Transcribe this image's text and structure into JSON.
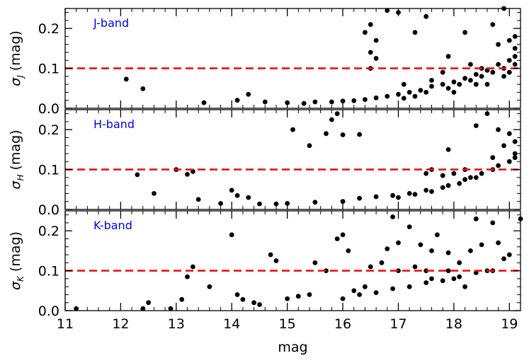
{
  "chart_data": {
    "type": "scatter",
    "xlabel": "mag",
    "xlim": [
      11.0,
      19.2
    ],
    "xticks": [
      "11",
      "12",
      "13",
      "14",
      "15",
      "16",
      "17",
      "18",
      "19"
    ],
    "ylim": [
      0.0,
      0.25
    ],
    "yticks": [
      "0.0",
      "0.1",
      "0.2"
    ],
    "threshold": 0.1,
    "threshold_color": "#ee1111",
    "label_color": "#0000ee",
    "point_color": "#000000",
    "panels": [
      {
        "band_label": "J-band",
        "ylabel_symbol": "σ",
        "ylabel_sub": "J",
        "ylabel_unit": "(mag)",
        "points": [
          [
            12.1,
            0.073
          ],
          [
            12.4,
            0.049
          ],
          [
            13.5,
            0.014
          ],
          [
            14.1,
            0.02
          ],
          [
            14.3,
            0.035
          ],
          [
            14.6,
            0.016
          ],
          [
            15.0,
            0.014
          ],
          [
            15.3,
            0.012
          ],
          [
            15.5,
            0.016
          ],
          [
            15.8,
            0.016
          ],
          [
            16.0,
            0.018
          ],
          [
            16.2,
            0.019
          ],
          [
            16.4,
            0.022
          ],
          [
            16.6,
            0.026
          ],
          [
            16.8,
            0.03
          ],
          [
            17.0,
            0.035
          ],
          [
            17.2,
            0.04
          ],
          [
            17.4,
            0.045
          ],
          [
            17.6,
            0.055
          ],
          [
            17.8,
            0.06
          ],
          [
            18.0,
            0.066
          ],
          [
            18.2,
            0.075
          ],
          [
            18.4,
            0.085
          ],
          [
            18.6,
            0.095
          ],
          [
            18.8,
            0.11
          ],
          [
            19.0,
            0.12
          ],
          [
            19.1,
            0.13
          ],
          [
            17.1,
            0.025
          ],
          [
            17.3,
            0.03
          ],
          [
            17.5,
            0.04
          ],
          [
            17.9,
            0.05
          ],
          [
            18.1,
            0.06
          ],
          [
            18.3,
            0.07
          ],
          [
            18.5,
            0.08
          ],
          [
            18.7,
            0.09
          ],
          [
            18.9,
            0.1
          ],
          [
            19.1,
            0.11
          ],
          [
            16.4,
            0.19
          ],
          [
            16.5,
            0.21
          ],
          [
            16.6,
            0.17
          ],
          [
            16.8,
            0.245
          ],
          [
            17.0,
            0.24
          ],
          [
            17.3,
            0.19
          ],
          [
            17.5,
            0.23
          ],
          [
            17.9,
            0.13
          ],
          [
            18.2,
            0.19
          ],
          [
            18.5,
            0.1
          ],
          [
            18.7,
            0.21
          ],
          [
            18.9,
            0.25
          ],
          [
            19.1,
            0.15
          ],
          [
            16.5,
            0.14
          ],
          [
            16.6,
            0.125
          ],
          [
            17.8,
            0.09
          ],
          [
            18.3,
            0.11
          ],
          [
            18.8,
            0.16
          ],
          [
            19.0,
            0.17
          ],
          [
            19.1,
            0.18
          ],
          [
            16.5,
            0.1
          ],
          [
            17.1,
            0.06
          ],
          [
            17.6,
            0.07
          ],
          [
            18.0,
            0.04
          ],
          [
            18.4,
            0.06
          ],
          [
            18.6,
            0.06
          ],
          [
            18.9,
            0.08
          ],
          [
            19.0,
            0.09
          ]
        ]
      },
      {
        "band_label": "H-band",
        "ylabel_symbol": "σ",
        "ylabel_sub": "H",
        "ylabel_unit": "(mag)",
        "points": [
          [
            12.3,
            0.087
          ],
          [
            12.6,
            0.04
          ],
          [
            13.0,
            0.1
          ],
          [
            13.2,
            0.088
          ],
          [
            13.3,
            0.095
          ],
          [
            13.4,
            0.025
          ],
          [
            13.8,
            0.015
          ],
          [
            14.0,
            0.048
          ],
          [
            14.1,
            0.035
          ],
          [
            14.3,
            0.03
          ],
          [
            14.5,
            0.014
          ],
          [
            14.8,
            0.014
          ],
          [
            15.1,
            0.2
          ],
          [
            15.4,
            0.16
          ],
          [
            15.7,
            0.19
          ],
          [
            15.8,
            0.225
          ],
          [
            15.9,
            0.24
          ],
          [
            16.0,
            0.187
          ],
          [
            16.3,
            0.188
          ],
          [
            15.0,
            0.015
          ],
          [
            15.5,
            0.018
          ],
          [
            16.0,
            0.02
          ],
          [
            16.3,
            0.028
          ],
          [
            16.6,
            0.032
          ],
          [
            16.9,
            0.035
          ],
          [
            17.2,
            0.04
          ],
          [
            17.5,
            0.048
          ],
          [
            17.8,
            0.055
          ],
          [
            18.1,
            0.065
          ],
          [
            18.4,
            0.08
          ],
          [
            18.7,
            0.1
          ],
          [
            19.0,
            0.12
          ],
          [
            19.1,
            0.14
          ],
          [
            17.0,
            0.03
          ],
          [
            17.3,
            0.038
          ],
          [
            17.6,
            0.045
          ],
          [
            17.9,
            0.06
          ],
          [
            18.2,
            0.075
          ],
          [
            18.5,
            0.09
          ],
          [
            18.8,
            0.11
          ],
          [
            19.1,
            0.13
          ],
          [
            17.6,
            0.1
          ],
          [
            17.9,
            0.15
          ],
          [
            18.2,
            0.1
          ],
          [
            18.4,
            0.21
          ],
          [
            18.6,
            0.24
          ],
          [
            18.8,
            0.2
          ],
          [
            19.0,
            0.19
          ],
          [
            19.1,
            0.17
          ],
          [
            18.9,
            0.16
          ],
          [
            17.5,
            0.09
          ],
          [
            17.8,
            0.085
          ],
          [
            18.0,
            0.09
          ],
          [
            18.3,
            0.08
          ],
          [
            18.7,
            0.13
          ],
          [
            19.1,
            0.17
          ]
        ]
      },
      {
        "band_label": "K-band",
        "ylabel_symbol": "σ",
        "ylabel_sub": "K",
        "ylabel_unit": "(mag)",
        "points": [
          [
            11.2,
            0.005
          ],
          [
            12.4,
            0.005
          ],
          [
            12.5,
            0.02
          ],
          [
            12.9,
            0.005
          ],
          [
            13.1,
            0.028
          ],
          [
            13.2,
            0.085
          ],
          [
            13.3,
            0.11
          ],
          [
            13.6,
            0.06
          ],
          [
            14.0,
            0.19
          ],
          [
            14.1,
            0.04
          ],
          [
            14.2,
            0.028
          ],
          [
            14.4,
            0.02
          ],
          [
            14.5,
            0.015
          ],
          [
            14.7,
            0.14
          ],
          [
            14.8,
            0.125
          ],
          [
            15.0,
            0.03
          ],
          [
            15.2,
            0.036
          ],
          [
            15.4,
            0.04
          ],
          [
            15.5,
            0.12
          ],
          [
            15.7,
            0.1
          ],
          [
            15.9,
            0.18
          ],
          [
            16.0,
            0.19
          ],
          [
            16.1,
            0.15
          ],
          [
            16.2,
            0.05
          ],
          [
            16.4,
            0.06
          ],
          [
            16.5,
            0.11
          ],
          [
            16.7,
            0.12
          ],
          [
            16.8,
            0.155
          ],
          [
            16.9,
            0.235
          ],
          [
            17.0,
            0.17
          ],
          [
            17.2,
            0.21
          ],
          [
            17.4,
            0.165
          ],
          [
            17.5,
            0.1
          ],
          [
            17.6,
            0.15
          ],
          [
            17.7,
            0.19
          ],
          [
            17.9,
            0.145
          ],
          [
            18.0,
            0.08
          ],
          [
            18.1,
            0.12
          ],
          [
            18.3,
            0.15
          ],
          [
            18.4,
            0.23
          ],
          [
            18.5,
            0.165
          ],
          [
            18.6,
            0.1
          ],
          [
            18.7,
            0.22
          ],
          [
            18.8,
            0.17
          ],
          [
            18.9,
            0.13
          ],
          [
            19.0,
            0.14
          ],
          [
            19.2,
            0.23
          ],
          [
            16.0,
            0.03
          ],
          [
            16.3,
            0.04
          ],
          [
            16.6,
            0.045
          ],
          [
            16.9,
            0.055
          ],
          [
            17.2,
            0.06
          ],
          [
            17.5,
            0.07
          ],
          [
            17.8,
            0.075
          ],
          [
            18.1,
            0.085
          ],
          [
            18.4,
            0.095
          ],
          [
            18.7,
            0.1
          ],
          [
            17.0,
            0.1
          ],
          [
            17.3,
            0.11
          ],
          [
            17.6,
            0.08
          ],
          [
            17.9,
            0.1
          ],
          [
            18.2,
            0.06
          ]
        ]
      }
    ]
  }
}
